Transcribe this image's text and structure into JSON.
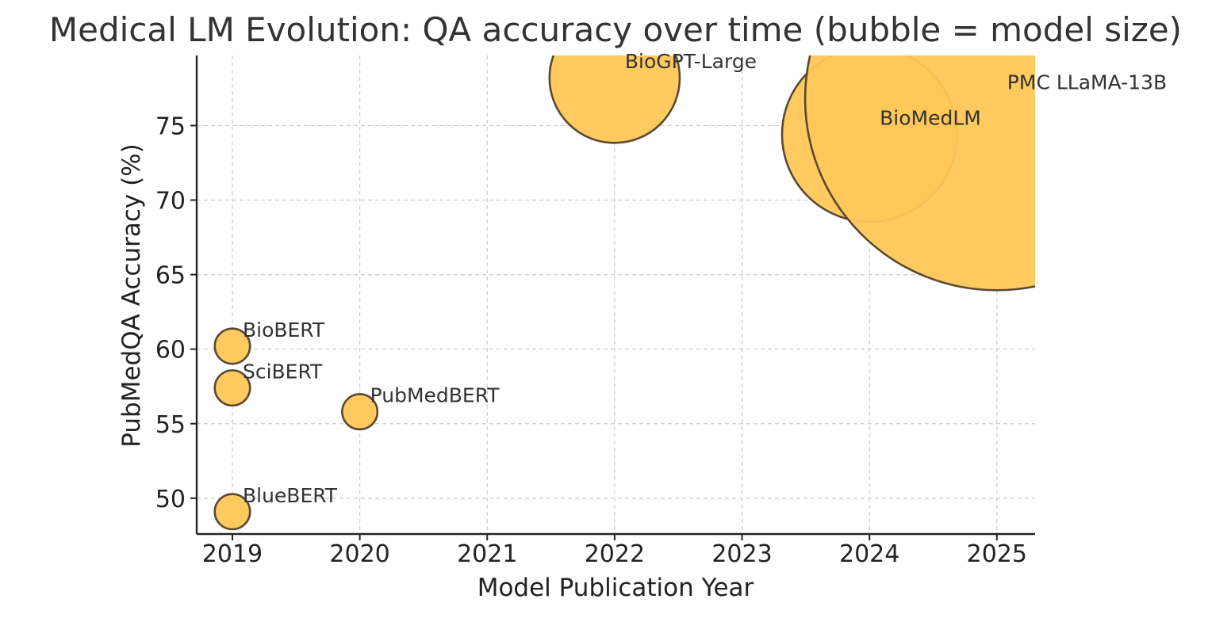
{
  "chart_data": {
    "type": "scatter",
    "title": "Medical LM Evolution: QA accuracy over time (bubble = model size)",
    "xlabel": "Model Publication Year",
    "ylabel": "PubMedQA Accuracy (%)",
    "xlim": [
      2018.72,
      2025.3
    ],
    "ylim": [
      47.6,
      79.7
    ],
    "xticks": [
      2019,
      2020,
      2021,
      2022,
      2023,
      2024,
      2025
    ],
    "yticks": [
      50,
      55,
      60,
      65,
      70,
      75
    ],
    "grid": true,
    "bubble_color": "#ffc757",
    "bubble_edge_color": "#5a4a32",
    "points": [
      {
        "label": "BioBERT",
        "x": 2019,
        "y": 60.2,
        "size": 110
      },
      {
        "label": "SciBERT",
        "x": 2019,
        "y": 57.4,
        "size": 110
      },
      {
        "label": "BlueBERT",
        "x": 2019,
        "y": 49.1,
        "size": 110
      },
      {
        "label": "PubMedBERT",
        "x": 2020,
        "y": 55.8,
        "size": 110
      },
      {
        "label": "BioGPT-Large",
        "x": 2022,
        "y": 78.2,
        "size": 1500
      },
      {
        "label": "BioMedLM",
        "x": 2024,
        "y": 74.4,
        "size": 2700
      },
      {
        "label": "PMC LLaMA-13B",
        "x": 2025,
        "y": 76.8,
        "size": 13000
      }
    ]
  }
}
